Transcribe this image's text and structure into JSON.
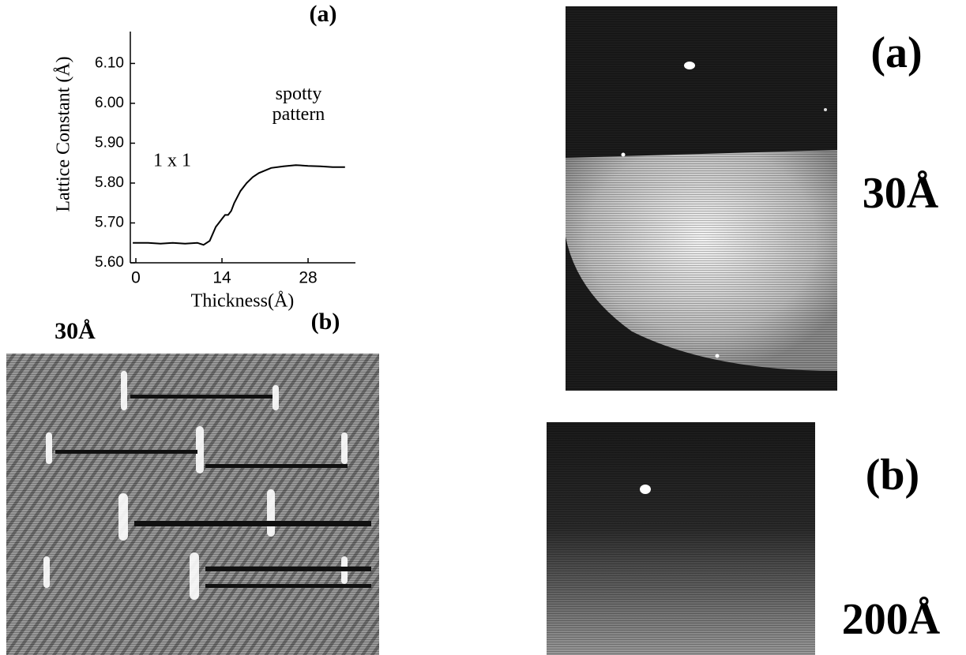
{
  "chart_data": {
    "type": "line",
    "panel_label": "(a)",
    "x_label": "Thickness(Å)",
    "y_label": "Lattice Constant (Å)",
    "annotations": [
      "1 x 1",
      "spotty pattern"
    ],
    "x": [
      -0.5,
      2,
      4,
      6,
      8,
      10,
      11,
      12,
      13,
      13.5,
      14,
      14.5,
      15,
      15.5,
      16,
      17,
      18,
      19,
      20,
      22,
      24,
      26,
      28,
      30,
      32,
      34
    ],
    "values": [
      5.65,
      5.65,
      5.648,
      5.65,
      5.648,
      5.65,
      5.645,
      5.655,
      5.69,
      5.7,
      5.71,
      5.72,
      5.72,
      5.73,
      5.75,
      5.78,
      5.8,
      5.815,
      5.825,
      5.838,
      5.842,
      5.845,
      5.843,
      5.842,
      5.84,
      5.84
    ],
    "color": "#000000",
    "xlim": [
      -0.9,
      35.7
    ],
    "xticks": [
      0,
      14,
      28
    ],
    "ylim": [
      5.6,
      6.18
    ],
    "yticks": [
      {
        "value": 5.6,
        "label": "5.60"
      },
      {
        "value": 5.7,
        "label": "5.70"
      },
      {
        "value": 5.8,
        "label": "5.80"
      },
      {
        "value": 5.9,
        "label": "5.90"
      },
      {
        "value": 6.0,
        "label": "6.00"
      },
      {
        "value": 6.1,
        "label": "6.10"
      }
    ]
  },
  "left_image": {
    "thickness": "30Å",
    "panel_label": "(b)"
  },
  "right_images": [
    {
      "panel_label": "(a)",
      "thickness": "30Å"
    },
    {
      "panel_label": "(b)",
      "thickness": "200Å"
    }
  ]
}
